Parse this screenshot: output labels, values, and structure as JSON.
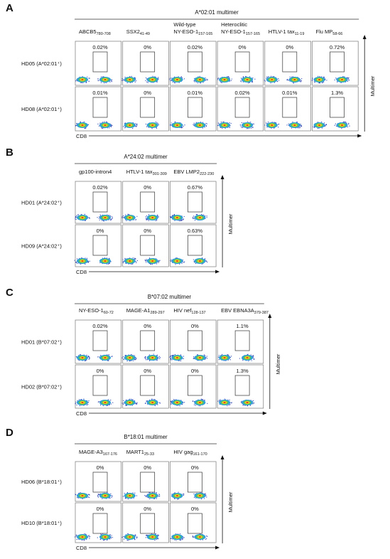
{
  "panels": [
    {
      "letter": "A",
      "title": "A*02:01 multimer",
      "columns": [
        {
          "name": "ABCB5",
          "sub": "780-708"
        },
        {
          "name": "SSX2",
          "sub": "41-49"
        },
        {
          "pre": "Wild-type",
          "name": "NY-ESO-1",
          "sub": "157-165"
        },
        {
          "pre": "Heteroclitic",
          "name": "NY-ESO-1",
          "sub": "157-165"
        },
        {
          "name": "HTLV-1 tax",
          "sub": "11-19"
        },
        {
          "name": "Flu MP",
          "sub": "58-66"
        }
      ],
      "rows": [
        {
          "label": "HD05 (A*02:01⁺)",
          "values": [
            "0.02%",
            "0%",
            "0.02%",
            "0%",
            "0%",
            "0.72%"
          ]
        },
        {
          "label": "HD08 (A*02:01⁺)",
          "values": [
            "0.01%",
            "0%",
            "0.01%",
            "0.02%",
            "0.01%",
            "1.3%"
          ]
        }
      ],
      "x_label": "CD8",
      "y_label": "Multimer"
    },
    {
      "letter": "B",
      "title": "A*24:02 multimer",
      "columns": [
        {
          "name": "gp100-intron4"
        },
        {
          "name": "HTLV-1 tax",
          "sub": "301-309"
        },
        {
          "name": "EBV LMP2",
          "sub": "222-230"
        }
      ],
      "rows": [
        {
          "label": "HD01 (A*24:02⁺)",
          "values": [
            "0.02%",
            "0%",
            "0.67%"
          ]
        },
        {
          "label": "HD09 (A*24:02⁺)",
          "values": [
            "0%",
            "0%",
            "0.63%"
          ]
        }
      ],
      "x_label": "CD8",
      "y_label": "Multimer"
    },
    {
      "letter": "C",
      "title": "B*07:02 multimer",
      "columns": [
        {
          "name": "NY-ESO-1",
          "sub": "60-72"
        },
        {
          "name": "MAGE-A1",
          "sub": "289-297"
        },
        {
          "name": "HIV nef",
          "sub": "128-137"
        },
        {
          "name": "EBV EBNA3A",
          "sub": "379-387"
        }
      ],
      "rows": [
        {
          "label": "HD01 (B*07:02⁺)",
          "values": [
            "0.02%",
            "0%",
            "0%",
            "1.1%"
          ]
        },
        {
          "label": "HD02 (B*07:02⁺)",
          "values": [
            "0%",
            "0%",
            "0%",
            "1.3%"
          ]
        }
      ],
      "x_label": "CD8",
      "y_label": "Multimer"
    },
    {
      "letter": "D",
      "title": "B*18:01 multimer",
      "columns": [
        {
          "name": "MAGE-A3",
          "sub": "167-176"
        },
        {
          "name": "MART1",
          "sub": "25-33"
        },
        {
          "name": "HIV gag",
          "sub": "161-170"
        }
      ],
      "rows": [
        {
          "label": "HD06 (B*18:01⁺)",
          "values": [
            "0%",
            "0%",
            "0%"
          ]
        },
        {
          "label": "HD10 (B*18:01⁺)",
          "values": [
            "0%",
            "0%",
            "0%"
          ]
        }
      ],
      "x_label": "CD8",
      "y_label": "Multimer"
    }
  ]
}
